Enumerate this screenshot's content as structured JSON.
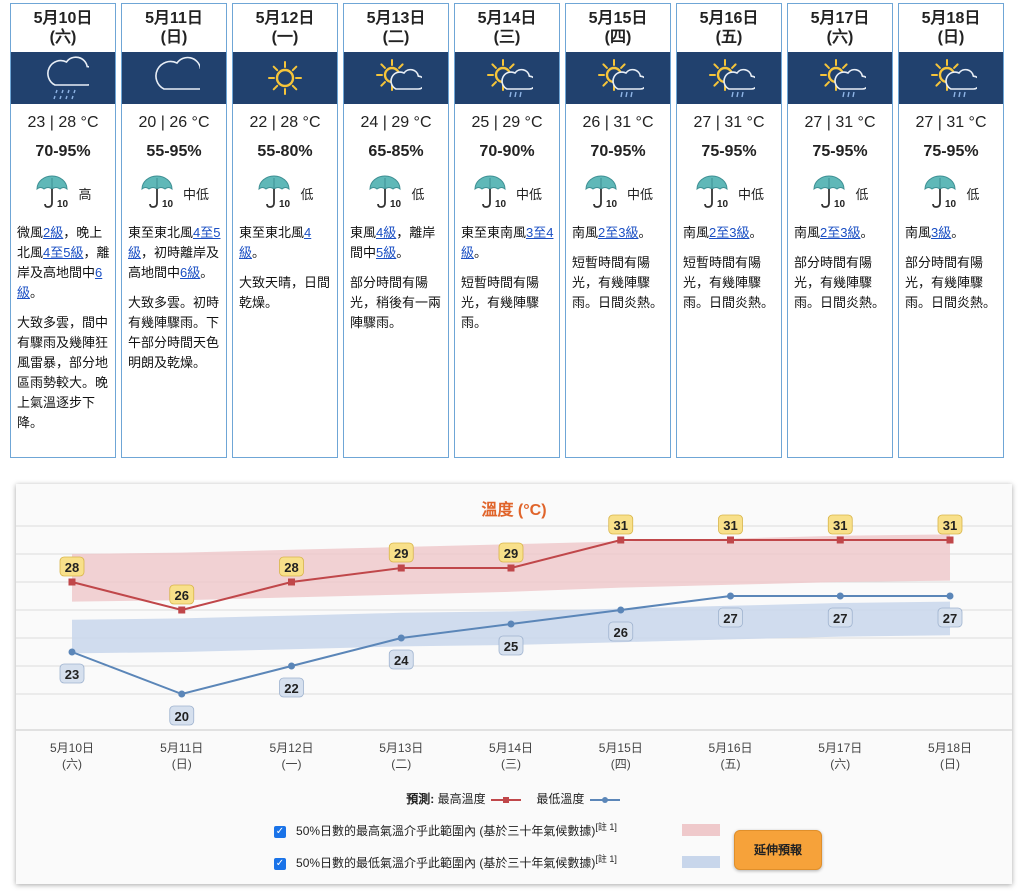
{
  "days": [
    {
      "date": "5月10日",
      "weekday": "(六)",
      "icon": "rain-cloud-icon",
      "temp": "23 | 28 °C",
      "humidity": "70-95%",
      "uv": "高",
      "wind": [
        {
          "t": "微風"
        },
        {
          "t": "2級",
          "link": true
        },
        {
          "t": "，晚上北風"
        },
        {
          "t": "4至5級",
          "link": true
        },
        {
          "t": "，離岸及高地間中"
        },
        {
          "t": "6級",
          "link": true
        },
        {
          "t": "。"
        }
      ],
      "desc": "大致多雲，間中有驟雨及幾陣狂風雷暴，部分地區雨勢較大。晚上氣溫逐步下降。"
    },
    {
      "date": "5月11日",
      "weekday": "(日)",
      "icon": "cloud-icon",
      "temp": "20 | 26 °C",
      "humidity": "55-95%",
      "uv": "中低",
      "wind": [
        {
          "t": "東至東北風"
        },
        {
          "t": "4至5級",
          "link": true
        },
        {
          "t": "，初時離岸及高地間中"
        },
        {
          "t": "6級",
          "link": true
        },
        {
          "t": "。"
        }
      ],
      "desc": "大致多雲。初時有幾陣驟雨。下午部分時間天色明朗及乾燥。"
    },
    {
      "date": "5月12日",
      "weekday": "(一)",
      "icon": "sun-icon",
      "temp": "22 | 28 °C",
      "humidity": "55-80%",
      "uv": "低",
      "wind": [
        {
          "t": "東至東北風"
        },
        {
          "t": "4級",
          "link": true
        },
        {
          "t": "。"
        }
      ],
      "desc": "大致天晴，日間乾燥。"
    },
    {
      "date": "5月13日",
      "weekday": "(二)",
      "icon": "sun-cloud-icon",
      "temp": "24 | 29 °C",
      "humidity": "65-85%",
      "uv": "低",
      "wind": [
        {
          "t": "東風"
        },
        {
          "t": "4級",
          "link": true
        },
        {
          "t": "，離岸間中"
        },
        {
          "t": "5級",
          "link": true
        },
        {
          "t": "。"
        }
      ],
      "desc": "部分時間有陽光，稍後有一兩陣驟雨。"
    },
    {
      "date": "5月14日",
      "weekday": "(三)",
      "icon": "sun-shower-icon",
      "temp": "25 | 29 °C",
      "humidity": "70-90%",
      "uv": "中低",
      "wind": [
        {
          "t": "東至東南風"
        },
        {
          "t": "3至4級",
          "link": true
        },
        {
          "t": "。"
        }
      ],
      "desc": "短暫時間有陽光，有幾陣驟雨。"
    },
    {
      "date": "5月15日",
      "weekday": "(四)",
      "icon": "sun-shower-icon",
      "temp": "26 | 31 °C",
      "humidity": "70-95%",
      "uv": "中低",
      "wind": [
        {
          "t": "南風"
        },
        {
          "t": "2至3級",
          "link": true
        },
        {
          "t": "。"
        }
      ],
      "desc": "短暫時間有陽光，有幾陣驟雨。日間炎熱。"
    },
    {
      "date": "5月16日",
      "weekday": "(五)",
      "icon": "sun-shower-icon",
      "temp": "27 | 31 °C",
      "humidity": "75-95%",
      "uv": "中低",
      "wind": [
        {
          "t": "南風"
        },
        {
          "t": "2至3級",
          "link": true
        },
        {
          "t": "。"
        }
      ],
      "desc": "短暫時間有陽光，有幾陣驟雨。日間炎熱。"
    },
    {
      "date": "5月17日",
      "weekday": "(六)",
      "icon": "sun-shower-icon",
      "temp": "27 | 31 °C",
      "humidity": "75-95%",
      "uv": "低",
      "wind": [
        {
          "t": "南風"
        },
        {
          "t": "2至3級",
          "link": true
        },
        {
          "t": "。"
        }
      ],
      "desc": "部分時間有陽光，有幾陣驟雨。日間炎熱。"
    },
    {
      "date": "5月18日",
      "weekday": "(日)",
      "icon": "sun-shower-icon",
      "temp": "27 | 31 °C",
      "humidity": "75-95%",
      "uv": "低",
      "wind": [
        {
          "t": "南風"
        },
        {
          "t": "3級",
          "link": true
        },
        {
          "t": "。"
        }
      ],
      "desc": "部分時間有陽光，有幾陣驟雨。日間炎熱。"
    }
  ],
  "uv_index_label": "10",
  "colors": {
    "icon_bg": "#21416e",
    "max_line": "#c0474a",
    "min_line": "#5b86b8",
    "max_band": "#efc9cb",
    "min_band": "#c8d6eb",
    "max_label_bg": "#f8e08a",
    "min_label_bg": "#d6e0ee",
    "title": "#e0642a",
    "button": "#f6a23a"
  },
  "chart_data": {
    "type": "line",
    "title": "溫度 (°C)",
    "categories": [
      "5月10日",
      "5月11日",
      "5月12日",
      "5月13日",
      "5月14日",
      "5月15日",
      "5月16日",
      "5月17日",
      "5月18日"
    ],
    "weekdays": [
      "(六)",
      "(日)",
      "(一)",
      "(二)",
      "(三)",
      "(四)",
      "(五)",
      "(六)",
      "(日)"
    ],
    "series": [
      {
        "name": "最高溫度",
        "values": [
          28,
          26,
          28,
          29,
          29,
          31,
          31,
          31,
          31
        ]
      },
      {
        "name": "最低溫度",
        "values": [
          23,
          20,
          22,
          24,
          25,
          26,
          27,
          27,
          27
        ]
      }
    ],
    "bands": [
      {
        "label": "50%日數的最高氣溫介乎此範圍內 (基於三十年氣候數據)",
        "note": "[註 1]",
        "low": [
          26.6,
          26.7,
          26.9,
          27.1,
          27.3,
          27.6,
          27.8,
          28.0,
          28.1
        ],
        "high": [
          30.0,
          30.1,
          30.3,
          30.5,
          30.7,
          30.9,
          31.1,
          31.3,
          31.4
        ]
      },
      {
        "label": "50%日數的最低氣溫介乎此範圍內 (基於三十年氣候數據)",
        "note": "[註 1]",
        "low": [
          22.9,
          23.0,
          23.2,
          23.4,
          23.5,
          23.7,
          23.9,
          24.1,
          24.2
        ],
        "high": [
          25.3,
          25.4,
          25.6,
          25.8,
          25.9,
          26.1,
          26.3,
          26.5,
          26.6
        ]
      }
    ],
    "legend_prefix": "預測:",
    "ylim": [
      18,
      33
    ],
    "grid": true,
    "legend_position": "bottom"
  },
  "extend_button": "延伸預報"
}
